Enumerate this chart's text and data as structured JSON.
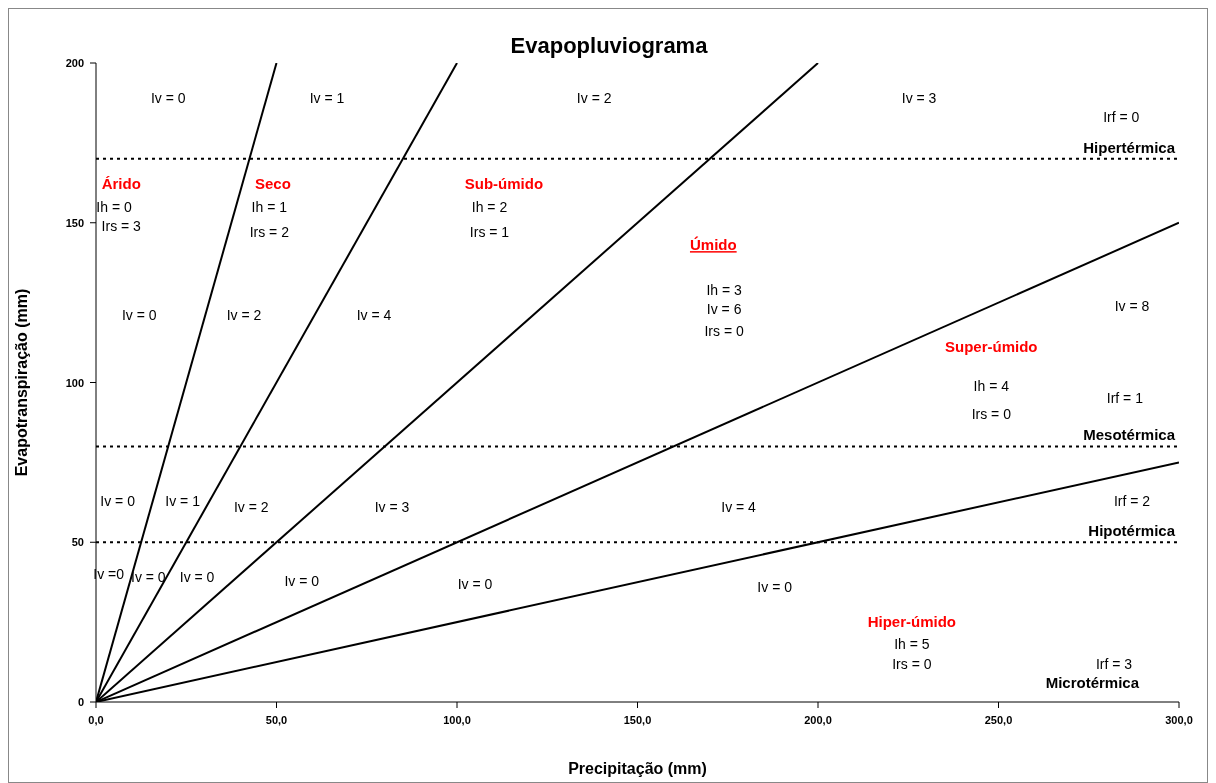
{
  "chart_data": {
    "type": "line",
    "title": "Evapopluviograma",
    "xlabel": "Precipitação (mm)",
    "ylabel": "Evapotranspiração (mm)",
    "xlim": [
      0,
      300
    ],
    "xticks": [
      {
        "value": 0,
        "label": "0,0"
      },
      {
        "value": 50,
        "label": "50,0"
      },
      {
        "value": 100,
        "label": "100,0"
      },
      {
        "value": 150,
        "label": "150,0"
      },
      {
        "value": 200,
        "label": "200,0"
      },
      {
        "value": 250,
        "label": "250,0"
      },
      {
        "value": 300,
        "label": "300,0"
      }
    ],
    "ylim": [
      0,
      200
    ],
    "yticks": [
      0,
      50,
      100,
      150,
      200
    ],
    "marker": "none",
    "line_style": "solid",
    "series": [
      {
        "color": "#000000",
        "x": [
          0,
          50
        ],
        "values": [
          0,
          200
        ]
      },
      {
        "color": "#000000",
        "x": [
          0,
          100
        ],
        "values": [
          0,
          200
        ]
      },
      {
        "color": "#000000",
        "x": [
          0,
          200
        ],
        "values": [
          0,
          200
        ]
      },
      {
        "color": "#000000",
        "x": [
          0,
          300
        ],
        "values": [
          0,
          150
        ]
      },
      {
        "color": "#000000",
        "x": [
          0,
          300
        ],
        "values": [
          0,
          75
        ]
      }
    ],
    "ref_lines": [
      {
        "axis": "y",
        "value": 170,
        "label": "Hipertérmica",
        "color": "#000000",
        "line_style": "dotted"
      },
      {
        "axis": "y",
        "value": 80,
        "label": "Mesotérmica",
        "color": "#000000",
        "line_style": "dotted"
      },
      {
        "axis": "y",
        "value": 50,
        "label": "Hipotérmica",
        "color": "#000000",
        "line_style": "dotted"
      }
    ],
    "annotations": [
      "Iv = 0",
      "Iv = 1",
      "Iv = 2",
      "Iv = 3",
      "Irf = 0",
      "Árido",
      "Ih = 0",
      "Irs = 3",
      "Seco",
      "Ih = 1",
      "Irs = 2",
      "Sub-úmido",
      "Ih = 2",
      "Irs = 1",
      "Úmido",
      "Ih = 3",
      "Iv = 6",
      "Irs = 0",
      "Iv = 0",
      "Iv = 2",
      "Iv = 4",
      "Iv = 8",
      "Super-úmido",
      "Ih = 4",
      "Irs = 0",
      "Irf = 1",
      "Iv = 0",
      "Iv = 1",
      "Iv = 2",
      "Iv = 3",
      "Iv = 4",
      "Irf = 2",
      "Iv =0",
      "Iv = 0",
      "Iv = 0",
      "Iv = 0",
      "Iv = 0",
      "Iv = 0",
      "Hiper-úmido",
      "Ih = 5",
      "Irs = 0",
      "Irf = 3",
      "Microtérmica"
    ]
  }
}
